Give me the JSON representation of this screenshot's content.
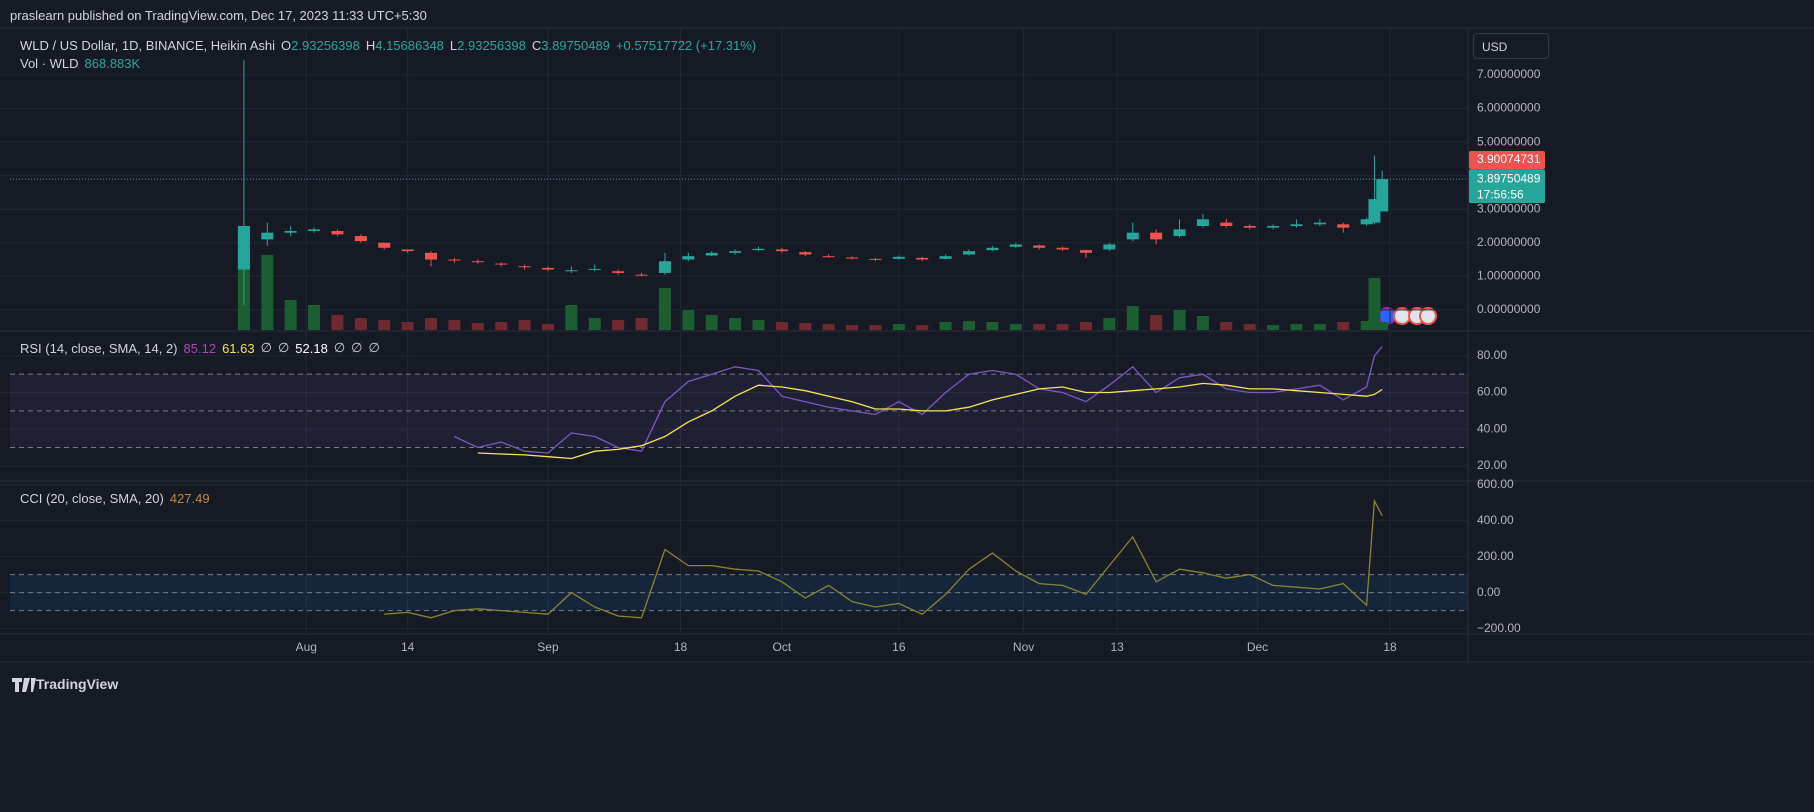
{
  "header": {
    "publisher": "praslearn published on TradingView.com, Dec 17, 2023 11:33 UTC+5:30"
  },
  "footer": {
    "brand": "TradingView"
  },
  "price_scale": {
    "currency": "USD",
    "countdown": "17:56:56"
  },
  "chart_data": [
    {
      "type": "candlestick",
      "title": "WLD / US Dollar, 1D, BINANCE, Heikin Ashi",
      "ohlc_labels": [
        "O",
        "H",
        "L",
        "C"
      ],
      "change_label": "+0.57517722 (+17.31%)",
      "x": [
        "07-24",
        "07-27",
        "07-30",
        "08-02",
        "08-05",
        "08-08",
        "08-11",
        "08-14",
        "08-17",
        "08-20",
        "08-23",
        "08-26",
        "08-29",
        "09-01",
        "09-04",
        "09-07",
        "09-10",
        "09-13",
        "09-16",
        "09-19",
        "09-22",
        "09-25",
        "09-28",
        "10-01",
        "10-04",
        "10-07",
        "10-10",
        "10-13",
        "10-16",
        "10-19",
        "10-22",
        "10-25",
        "10-28",
        "10-31",
        "11-03",
        "11-06",
        "11-09",
        "11-12",
        "11-15",
        "11-18",
        "11-21",
        "11-24",
        "11-27",
        "11-30",
        "12-03",
        "12-06",
        "12-09",
        "12-12",
        "12-15",
        "12-16",
        "12-17"
      ],
      "open": [
        1.2,
        2.1,
        2.3,
        2.35,
        2.35,
        2.2,
        2.0,
        1.8,
        1.7,
        1.5,
        1.45,
        1.38,
        1.3,
        1.25,
        1.15,
        1.2,
        1.15,
        1.05,
        1.1,
        1.5,
        1.62,
        1.7,
        1.78,
        1.8,
        1.72,
        1.6,
        1.56,
        1.52,
        1.52,
        1.55,
        1.52,
        1.65,
        1.78,
        1.88,
        1.92,
        1.85,
        1.78,
        1.8,
        2.1,
        2.3,
        2.2,
        2.5,
        2.6,
        2.5,
        2.45,
        2.5,
        2.55,
        2.55,
        2.55,
        2.6,
        2.93256398
      ],
      "high": [
        7.45,
        2.6,
        2.5,
        2.45,
        2.4,
        2.25,
        2.0,
        1.8,
        1.75,
        1.55,
        1.5,
        1.42,
        1.35,
        1.3,
        1.3,
        1.35,
        1.2,
        1.1,
        1.7,
        1.7,
        1.75,
        1.8,
        1.88,
        1.85,
        1.75,
        1.65,
        1.6,
        1.55,
        1.62,
        1.58,
        1.65,
        1.8,
        1.9,
        2.0,
        1.95,
        1.88,
        1.8,
        2.0,
        2.6,
        2.4,
        2.7,
        2.85,
        2.7,
        2.55,
        2.55,
        2.7,
        2.7,
        2.6,
        2.75,
        4.6,
        4.15686348
      ],
      "low": [
        0.15,
        1.9,
        2.2,
        2.3,
        2.2,
        2.0,
        1.8,
        1.7,
        1.3,
        1.4,
        1.38,
        1.3,
        1.2,
        1.15,
        1.1,
        1.15,
        1.05,
        1.0,
        1.05,
        1.45,
        1.6,
        1.65,
        1.75,
        1.7,
        1.6,
        1.55,
        1.5,
        1.45,
        1.5,
        1.45,
        1.5,
        1.62,
        1.75,
        1.85,
        1.8,
        1.75,
        1.55,
        1.75,
        2.05,
        1.95,
        2.15,
        2.45,
        2.45,
        2.4,
        2.4,
        2.45,
        2.5,
        2.3,
        2.5,
        2.55,
        2.93256398
      ],
      "close": [
        2.5,
        2.3,
        2.35,
        2.4,
        2.25,
        2.05,
        1.85,
        1.75,
        1.5,
        1.48,
        1.42,
        1.35,
        1.28,
        1.2,
        1.18,
        1.22,
        1.1,
        1.02,
        1.45,
        1.6,
        1.7,
        1.75,
        1.82,
        1.75,
        1.65,
        1.58,
        1.55,
        1.5,
        1.58,
        1.5,
        1.6,
        1.75,
        1.85,
        1.95,
        1.85,
        1.8,
        1.7,
        1.95,
        2.3,
        2.1,
        2.4,
        2.7,
        2.5,
        2.45,
        2.5,
        2.55,
        2.6,
        2.45,
        2.7,
        3.3,
        3.89750489
      ],
      "up_color": "#26a69a",
      "down_color": "#ef5350",
      "volume": {
        "name": "Vol · WLD",
        "legend_value": {
          "value": 868883,
          "label": "868.883K"
        },
        "up_color": "#1b5e32",
        "down_color": "#6e2a30",
        "values": [
          10860000,
          8150000,
          3260000,
          2720000,
          1630000,
          1300000,
          1090000,
          870000,
          1300000,
          1090000,
          760000,
          870000,
          1090000,
          650000,
          2720000,
          1300000,
          1090000,
          1300000,
          4560000,
          2170000,
          1630000,
          1300000,
          1090000,
          870000,
          760000,
          650000,
          540000,
          540000,
          650000,
          540000,
          870000,
          980000,
          870000,
          650000,
          650000,
          650000,
          870000,
          1300000,
          2610000,
          1630000,
          2170000,
          1520000,
          870000,
          650000,
          540000,
          650000,
          650000,
          870000,
          980000,
          5650000,
          868883
        ]
      },
      "xlim": [
        "06-24",
        "12-28"
      ],
      "ylim": [
        -0.6,
        8.4
      ],
      "yticks": [
        {
          "value": 0,
          "label": "0.00000000"
        },
        {
          "value": 1,
          "label": "1.00000000"
        },
        {
          "value": 2,
          "label": "2.00000000"
        },
        {
          "value": 3,
          "label": "3.00000000"
        },
        {
          "value": 4,
          "label": "4.00000000"
        },
        {
          "value": 5,
          "label": "5.00000000"
        },
        {
          "value": 6,
          "label": "6.00000000"
        },
        {
          "value": 7,
          "label": "7.00000000"
        }
      ],
      "markers": [
        {
          "value": 3.90074731,
          "color": "#ef5350"
        }
      ],
      "grid": true
    },
    {
      "type": "line",
      "title": "RSI (14, close, SMA, 14, 2)",
      "legend_extra": [
        "∅",
        "∅",
        52.18,
        "∅",
        "∅",
        "∅"
      ],
      "x": [
        "07-24",
        "07-27",
        "07-30",
        "08-02",
        "08-05",
        "08-08",
        "08-11",
        "08-14",
        "08-17",
        "08-20",
        "08-23",
        "08-26",
        "08-29",
        "09-01",
        "09-04",
        "09-07",
        "09-10",
        "09-13",
        "09-16",
        "09-19",
        "09-22",
        "09-25",
        "09-28",
        "10-01",
        "10-04",
        "10-07",
        "10-10",
        "10-13",
        "10-16",
        "10-19",
        "10-22",
        "10-25",
        "10-28",
        "10-31",
        "11-03",
        "11-06",
        "11-09",
        "11-12",
        "11-15",
        "11-18",
        "11-21",
        "11-24",
        "11-27",
        "11-30",
        "12-03",
        "12-06",
        "12-09",
        "12-12",
        "12-15",
        "12-16",
        "12-17"
      ],
      "series": [
        {
          "color": "#7e57c2",
          "values": [
            null,
            null,
            null,
            null,
            null,
            null,
            null,
            null,
            null,
            36,
            30,
            33,
            28,
            27,
            38,
            36,
            30,
            28,
            55,
            66,
            70,
            74,
            72,
            58,
            55,
            52,
            50,
            48,
            55,
            48,
            60,
            70,
            72,
            70,
            62,
            60,
            55,
            64,
            74,
            60,
            68,
            70,
            62,
            60,
            60,
            62,
            64,
            56,
            63,
            80,
            85.12
          ]
        },
        {
          "color": "#f7e359",
          "values": [
            null,
            null,
            null,
            null,
            null,
            null,
            null,
            null,
            null,
            null,
            27,
            26.5,
            26,
            25,
            24,
            28,
            29,
            31,
            36,
            44,
            50,
            58,
            64,
            63,
            61,
            58,
            55,
            51,
            51,
            50,
            50,
            52,
            56,
            59,
            62,
            63,
            60,
            60,
            61,
            62,
            63,
            65,
            64,
            62,
            62,
            61,
            60,
            59,
            58,
            59,
            61.63
          ]
        }
      ],
      "bands": [
        30,
        50,
        70
      ],
      "band_fill": "rgba(126,87,194,0.10)",
      "xlim": [
        "06-24",
        "12-28"
      ],
      "ylim": [
        12.3,
        93
      ],
      "yticks": [
        {
          "value": 20,
          "label": "20.00"
        },
        {
          "value": 40,
          "label": "40.00"
        },
        {
          "value": 60,
          "label": "60.00"
        },
        {
          "value": 80,
          "label": "80.00"
        }
      ],
      "grid": true
    },
    {
      "type": "line",
      "title": "CCI (20, close, SMA, 20)",
      "x": [
        "07-24",
        "07-27",
        "07-30",
        "08-02",
        "08-05",
        "08-08",
        "08-11",
        "08-14",
        "08-17",
        "08-20",
        "08-23",
        "08-26",
        "08-29",
        "09-01",
        "09-04",
        "09-07",
        "09-10",
        "09-13",
        "09-16",
        "09-19",
        "09-22",
        "09-25",
        "09-28",
        "10-01",
        "10-04",
        "10-07",
        "10-10",
        "10-13",
        "10-16",
        "10-19",
        "10-22",
        "10-25",
        "10-28",
        "10-31",
        "11-03",
        "11-06",
        "11-09",
        "11-12",
        "11-15",
        "11-18",
        "11-21",
        "11-24",
        "11-27",
        "11-30",
        "12-03",
        "12-06",
        "12-09",
        "12-12",
        "12-15",
        "12-16",
        "12-17"
      ],
      "series": [
        {
          "color": "#8a8430",
          "label_color": "#c8892b",
          "values": [
            null,
            null,
            null,
            null,
            null,
            null,
            -120,
            -110,
            -140,
            -100,
            -90,
            -100,
            -110,
            -120,
            0,
            -80,
            -130,
            -140,
            240,
            150,
            150,
            130,
            120,
            60,
            -30,
            40,
            -50,
            -80,
            -60,
            -120,
            -10,
            130,
            220,
            120,
            50,
            40,
            -10,
            150,
            310,
            60,
            130,
            110,
            80,
            100,
            40,
            30,
            20,
            50,
            -70,
            510,
            427.49
          ]
        }
      ],
      "bands": [
        -100,
        0,
        100
      ],
      "band_fill": "rgba(33,150,243,0.10)",
      "xlim": [
        "06-24",
        "12-28"
      ],
      "ylim": [
        -230,
        615
      ],
      "yticks": [
        {
          "value": -200,
          "label": "−200.00"
        },
        {
          "value": 0,
          "label": "0.00"
        },
        {
          "value": 200,
          "label": "200.00"
        },
        {
          "value": 400,
          "label": "400.00"
        },
        {
          "value": 600,
          "label": "600.00"
        }
      ],
      "xticks": [
        {
          "value": "08-01",
          "label": "Aug"
        },
        {
          "value": "08-14",
          "label": "14"
        },
        {
          "value": "09-01",
          "label": "Sep"
        },
        {
          "value": "09-18",
          "label": "18"
        },
        {
          "value": "10-01",
          "label": "Oct"
        },
        {
          "value": "10-16",
          "label": "16"
        },
        {
          "value": "11-01",
          "label": "Nov"
        },
        {
          "value": "11-13",
          "label": "13"
        },
        {
          "value": "12-01",
          "label": "Dec"
        },
        {
          "value": "12-18",
          "label": "18"
        }
      ],
      "grid": true
    }
  ]
}
